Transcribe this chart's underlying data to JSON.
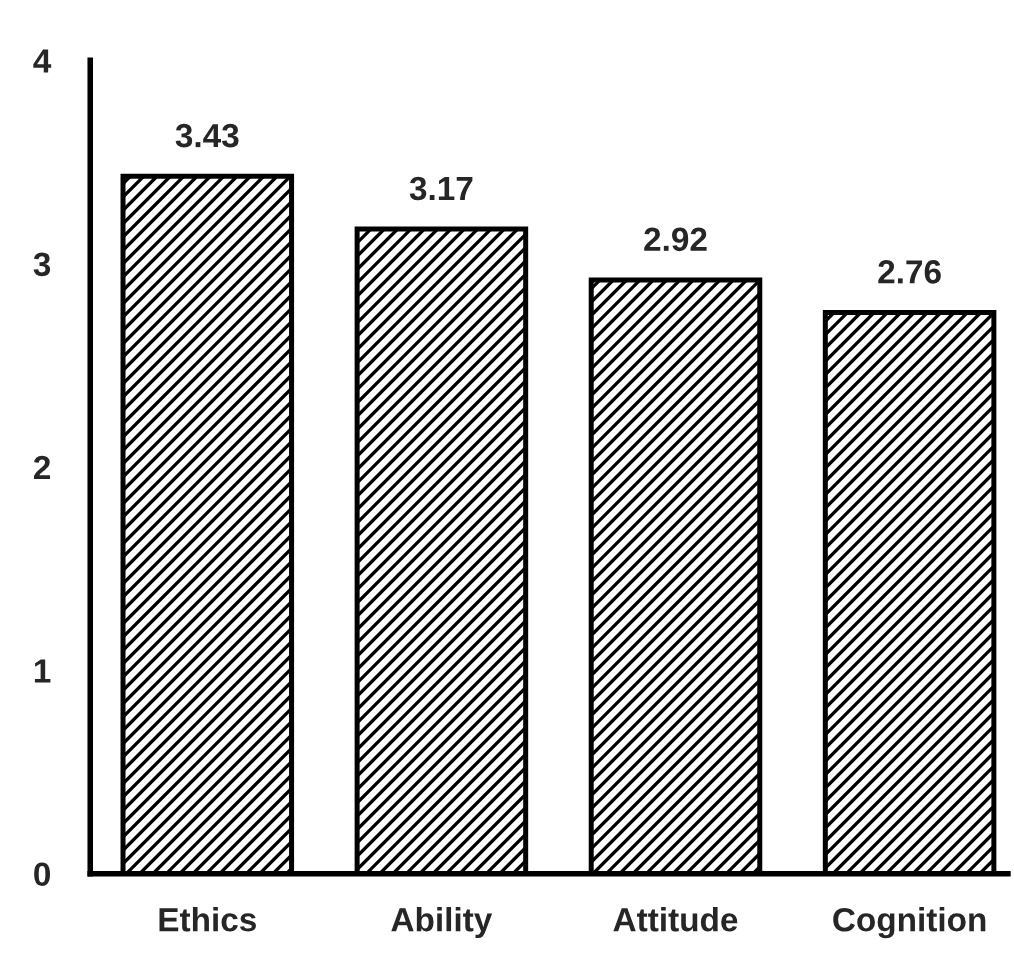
{
  "chart_data": {
    "type": "bar",
    "categories": [
      "Ethics",
      "Ability",
      "Attitude",
      "Cognition"
    ],
    "values": [
      3.43,
      3.17,
      2.92,
      2.76
    ],
    "color": "#000000",
    "ylim": [
      0,
      4
    ],
    "yticks": [
      0,
      1,
      2,
      3,
      4
    ],
    "data_labels": true,
    "grid": false,
    "legend": false
  }
}
